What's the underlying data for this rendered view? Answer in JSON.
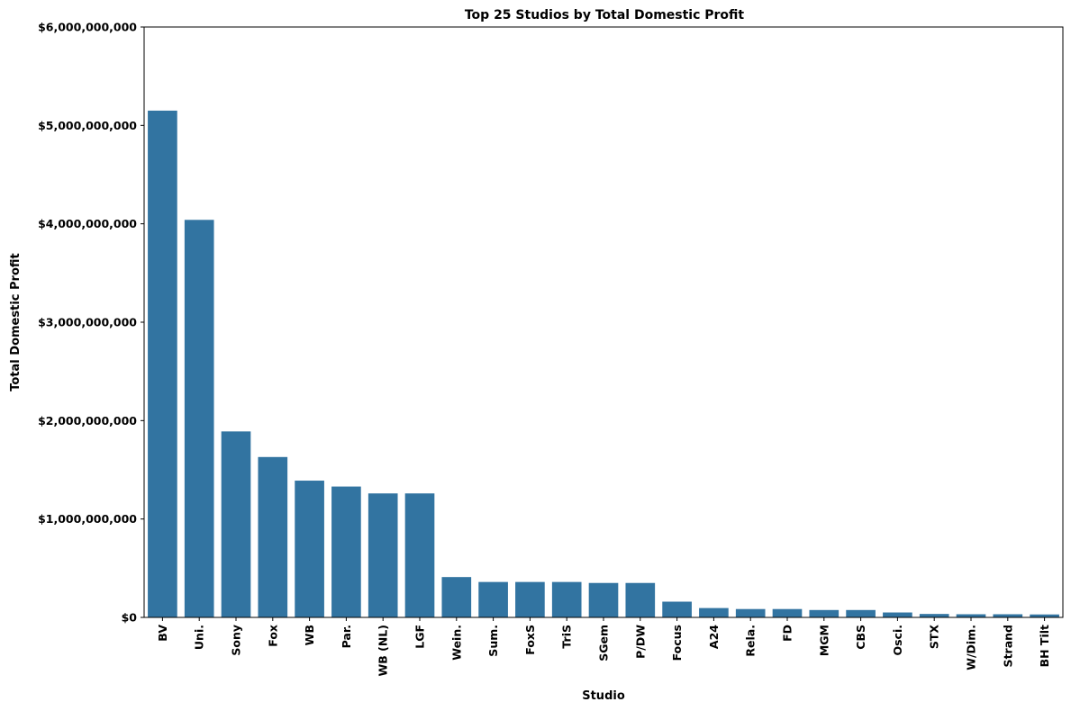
{
  "colors": {
    "bar": "#3274a1",
    "axis": "#000000",
    "background": "#ffffff"
  },
  "chart_data": {
    "type": "bar",
    "title": "Top 25 Studios by Total Domestic Profit",
    "xlabel": "Studio",
    "ylabel": "Total Domestic Profit",
    "ylim": [
      0,
      6000000000
    ],
    "yticks": [
      0,
      1000000000,
      2000000000,
      3000000000,
      4000000000,
      5000000000,
      6000000000
    ],
    "ytick_labels": [
      "$0",
      "$1,000,000,000",
      "$2,000,000,000",
      "$3,000,000,000",
      "$4,000,000,000",
      "$5,000,000,000",
      "$6,000,000,000"
    ],
    "grid": false,
    "legend": false,
    "categories": [
      "BV",
      "Uni.",
      "Sony",
      "Fox",
      "WB",
      "Par.",
      "WB (NL)",
      "LGF",
      "Wein.",
      "Sum.",
      "FoxS",
      "TriS",
      "SGem",
      "P/DW",
      "Focus",
      "A24",
      "Rela.",
      "FD",
      "MGM",
      "CBS",
      "Osci.",
      "STX",
      "W/Dim.",
      "Strand",
      "BH Tilt"
    ],
    "values": [
      5150000000,
      4040000000,
      1890000000,
      1630000000,
      1390000000,
      1330000000,
      1260000000,
      1260000000,
      410000000,
      360000000,
      360000000,
      360000000,
      350000000,
      350000000,
      160000000,
      95000000,
      85000000,
      85000000,
      75000000,
      75000000,
      50000000,
      35000000,
      32000000,
      32000000,
      30000000
    ]
  }
}
